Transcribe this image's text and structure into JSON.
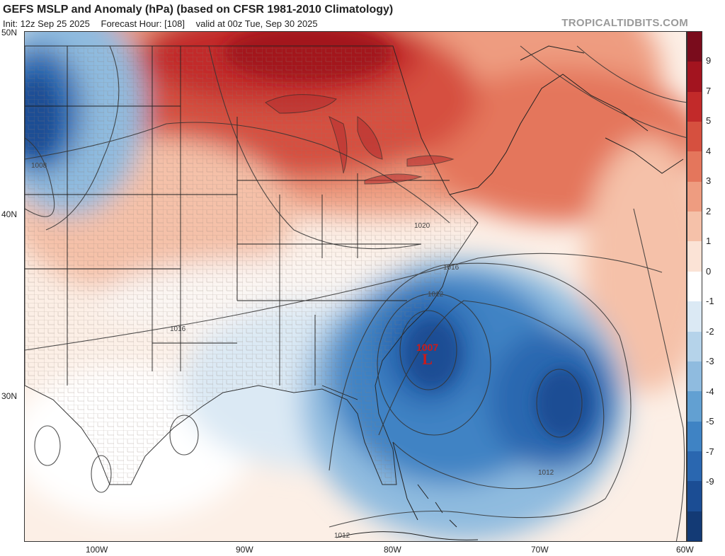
{
  "title": "GEFS MSLP and Anomaly (hPa) (based on CFSR 1981-2010 Climatology)",
  "subtitle": {
    "init": "Init: 12z Sep 25 2025",
    "forecast_hour": "Forecast Hour: [108]",
    "valid": "valid at 00z Tue, Sep 30 2025"
  },
  "brand": "TROPICALTIDBITS.COM",
  "lat_labels": [
    "50N",
    "40N",
    "30N"
  ],
  "lon_labels": [
    "100W",
    "90W",
    "80W",
    "70W",
    "60W"
  ],
  "colorbar": {
    "ticks": [
      "9",
      "7",
      "5",
      "4",
      "3",
      "2",
      "1",
      "0",
      "-1",
      "-2",
      "-3",
      "-4",
      "-5",
      "-7",
      "-9"
    ],
    "colors": [
      "#7a0c1c",
      "#a3141f",
      "#c22a2a",
      "#d6503f",
      "#e4765c",
      "#ee9c80",
      "#f5c1a9",
      "#fbe3d6",
      "#ffffff",
      "#dbe9f4",
      "#b5d3ea",
      "#8fbbdf",
      "#62a0d2",
      "#3f83c4",
      "#2a67b0",
      "#1b4d94",
      "#133a75"
    ]
  },
  "low_center": {
    "pressure": "1007",
    "symbol": "L"
  },
  "contour_labels": [
    "1008",
    "1020",
    "1016",
    "1012",
    "1016",
    "1012",
    "1012"
  ]
}
